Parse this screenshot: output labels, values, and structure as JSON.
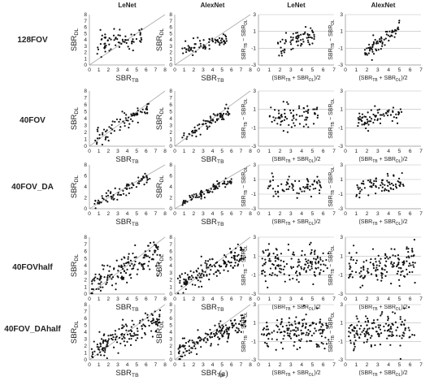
{
  "figure": {
    "caption": "(a)"
  },
  "columns": [
    {
      "title": "LeNet",
      "kind": "correlation"
    },
    {
      "title": "AlexNet",
      "kind": "correlation"
    },
    {
      "title": "LeNet",
      "kind": "bland-altman"
    },
    {
      "title": "AlexNet",
      "kind": "bland-altman"
    }
  ],
  "rows": [
    "128FOV",
    "40FOV",
    "40FOV_DA",
    "40FOVhalf",
    "40FOV_DAhalf"
  ],
  "axes": {
    "correlation": {
      "xlabel": "SBR_TB",
      "ylabel": "SBR_DL",
      "xlim": [
        0,
        8
      ],
      "ylim": [
        0,
        8
      ],
      "xticks": [
        "0",
        "1",
        "2",
        "3",
        "4",
        "5",
        "6",
        "7",
        "8"
      ],
      "yticks": [
        "0",
        "1",
        "2",
        "3",
        "4",
        "5",
        "6",
        "7",
        "8"
      ],
      "identity_line": true
    },
    "bland_altman": {
      "xlabel": "(SBR_TB + SBR_DL)/2",
      "ylabel": "SBR_TB − SBR_DL",
      "xlim": [
        0,
        7
      ],
      "ylim": [
        -3,
        3
      ],
      "xticks": [
        "0",
        "1",
        "2",
        "3",
        "4",
        "5",
        "6",
        "7"
      ],
      "yticks": [
        "-3",
        "-1",
        "1",
        "3"
      ],
      "grid": true
    }
  },
  "colors": {
    "points": "#111111",
    "axis": "#999999",
    "identity": "#aaaaaa",
    "grid": "#bbbbbb",
    "text": "#222222"
  },
  "chart_data": [
    {
      "type": "scatter",
      "row": "128FOV",
      "col": "LeNet",
      "n": 70,
      "x_range": [
        0.8,
        5.6
      ],
      "slope": 0.25,
      "intercept": 3.2,
      "noise": 0.9
    },
    {
      "type": "scatter",
      "row": "128FOV",
      "col": "AlexNet",
      "n": 70,
      "x_range": [
        0.8,
        5.6
      ],
      "slope": 0.35,
      "intercept": 2.2,
      "noise": 0.5
    },
    {
      "type": "scatter",
      "row": "128FOV",
      "col": "LeNet-BA",
      "n": 70,
      "x_range": [
        1.8,
        5.2
      ],
      "slope": 0.6,
      "intercept": -2.2,
      "noise": 0.8
    },
    {
      "type": "scatter",
      "row": "128FOV",
      "col": "AlexNet-BA",
      "n": 70,
      "x_range": [
        1.8,
        5.2
      ],
      "slope": 1.0,
      "intercept": -3.5,
      "noise": 0.5
    },
    {
      "type": "scatter",
      "row": "40FOV",
      "col": "LeNet",
      "n": 75,
      "x_range": [
        0.5,
        6.5
      ],
      "slope": 0.85,
      "intercept": 0.4,
      "noise": 0.6
    },
    {
      "type": "scatter",
      "row": "40FOV",
      "col": "AlexNet",
      "n": 75,
      "x_range": [
        0.8,
        6.0
      ],
      "slope": 0.8,
      "intercept": 0.5,
      "noise": 0.4
    },
    {
      "type": "scatter",
      "row": "40FOV",
      "col": "LeNet-BA",
      "n": 75,
      "x_range": [
        1.0,
        5.8
      ],
      "slope": 0.1,
      "intercept": 0.0,
      "noise": 0.7
    },
    {
      "type": "scatter",
      "row": "40FOV",
      "col": "AlexNet-BA",
      "n": 75,
      "x_range": [
        1.0,
        5.2
      ],
      "slope": 0.25,
      "intercept": -0.6,
      "noise": 0.5
    },
    {
      "type": "scatter",
      "row": "40FOV_DA",
      "col": "LeNet",
      "n": 75,
      "x_range": [
        0.5,
        6.5
      ],
      "slope": 0.85,
      "intercept": 0.4,
      "noise": 0.5
    },
    {
      "type": "scatter",
      "row": "40FOV_DA",
      "col": "AlexNet",
      "n": 75,
      "x_range": [
        0.8,
        6.0
      ],
      "slope": 0.75,
      "intercept": 0.6,
      "noise": 0.4
    },
    {
      "type": "scatter",
      "row": "40FOV_DA",
      "col": "LeNet-BA",
      "n": 75,
      "x_range": [
        0.8,
        5.8
      ],
      "slope": 0.0,
      "intercept": 0.0,
      "noise": 0.8
    },
    {
      "type": "scatter",
      "row": "40FOV_DA",
      "col": "AlexNet-BA",
      "n": 75,
      "x_range": [
        1.0,
        5.4
      ],
      "slope": 0.3,
      "intercept": -0.8,
      "noise": 0.7
    },
    {
      "type": "scatter",
      "row": "40FOVhalf",
      "col": "LeNet",
      "n": 150,
      "x_range": [
        0.2,
        7.5
      ],
      "slope": 0.6,
      "intercept": 1.2,
      "noise": 0.9
    },
    {
      "type": "scatter",
      "row": "40FOVhalf",
      "col": "AlexNet",
      "n": 150,
      "x_range": [
        0.3,
        7.5
      ],
      "slope": 0.6,
      "intercept": 1.2,
      "noise": 0.8
    },
    {
      "type": "scatter",
      "row": "40FOVhalf",
      "col": "LeNet-BA",
      "n": 150,
      "x_range": [
        0.3,
        6.5
      ],
      "slope": 0.0,
      "intercept": 0.1,
      "noise": 0.9
    },
    {
      "type": "scatter",
      "row": "40FOVhalf",
      "col": "AlexNet-BA",
      "n": 150,
      "x_range": [
        0.3,
        6.5
      ],
      "slope": 0.15,
      "intercept": -0.5,
      "noise": 0.9
    },
    {
      "type": "scatter",
      "row": "40FOV_DAhalf",
      "col": "LeNet",
      "n": 150,
      "x_range": [
        0.2,
        7.5
      ],
      "slope": 0.6,
      "intercept": 1.3,
      "noise": 0.9
    },
    {
      "type": "scatter",
      "row": "40FOV_DAhalf",
      "col": "AlexNet",
      "n": 150,
      "x_range": [
        0.3,
        7.5
      ],
      "slope": 0.6,
      "intercept": 1.0,
      "noise": 0.8
    },
    {
      "type": "scatter",
      "row": "40FOV_DAhalf",
      "col": "LeNet-BA",
      "n": 150,
      "x_range": [
        0.3,
        6.5
      ],
      "slope": 0.0,
      "intercept": 0.0,
      "noise": 1.0
    },
    {
      "type": "scatter",
      "row": "40FOV_DAhalf",
      "col": "AlexNet-BA",
      "n": 150,
      "x_range": [
        0.3,
        6.5
      ],
      "slope": 0.1,
      "intercept": 0.0,
      "noise": 0.9
    }
  ]
}
